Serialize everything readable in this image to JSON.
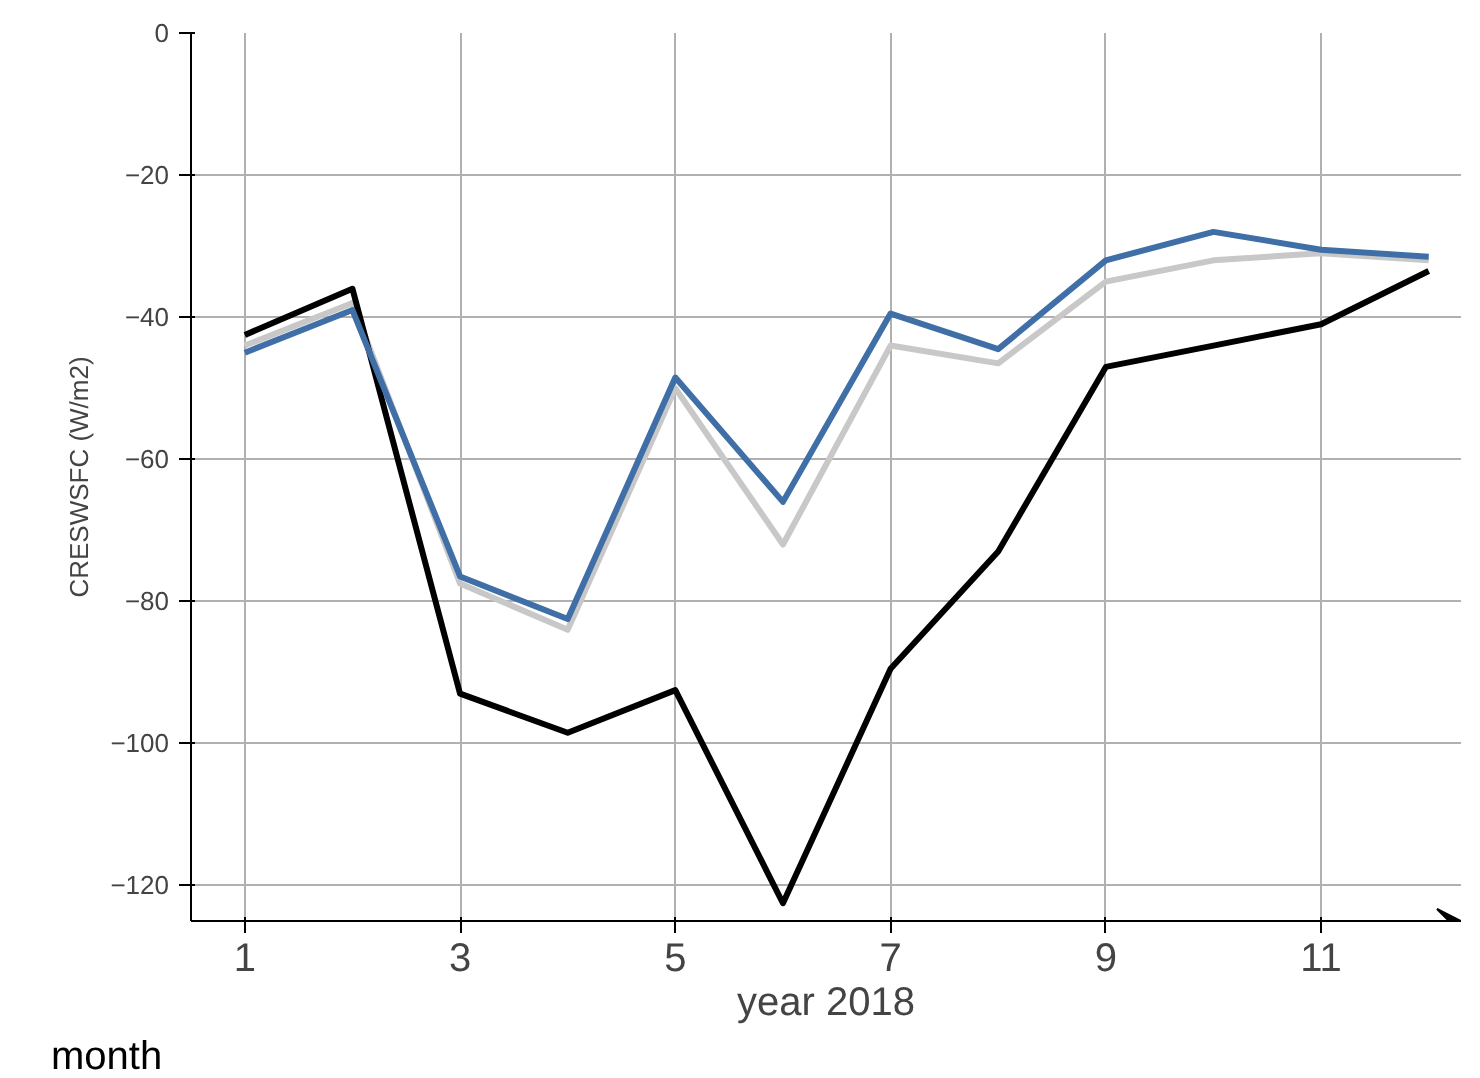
{
  "chart_data": {
    "type": "line",
    "x": [
      1,
      2,
      3,
      4,
      5,
      6,
      7,
      8,
      9,
      10,
      11,
      12
    ],
    "xlabel": "year 2018",
    "ylabel": "CRESWSFC (W/m2)",
    "annotations": [
      "month"
    ],
    "series": [
      {
        "color": "#c8c8c8",
        "values": [
          -44,
          -38,
          -77.5,
          -84,
          -50,
          -72,
          -44,
          -46.5,
          -35,
          -32,
          -31,
          -32
        ]
      },
      {
        "color": "#000000",
        "values": [
          -42.5,
          -36,
          -93,
          -98.5,
          -92.5,
          -122.5,
          -89.5,
          -73,
          -47,
          -44,
          -41,
          -33.5
        ]
      },
      {
        "color": "#3f6fa6",
        "values": [
          -45,
          -39,
          -76.5,
          -82.5,
          -48.5,
          -66,
          -39.5,
          -44.5,
          -32,
          -28,
          -30.5,
          -31.5
        ]
      }
    ],
    "xlim": [
      0.5,
      12.3
    ],
    "ylim": [
      -125,
      0
    ],
    "xticks": [
      1,
      3,
      5,
      7,
      9,
      11
    ],
    "yticks": [
      {
        "value": -120,
        "label": "−120"
      },
      {
        "value": -100,
        "label": "−100"
      },
      {
        "value": -80,
        "label": "−80"
      },
      {
        "value": -60,
        "label": "−60"
      },
      {
        "value": -40,
        "label": "−40"
      },
      {
        "value": -20,
        "label": "−20"
      },
      0
    ],
    "grid": true,
    "marker": "none",
    "line_style": "solid"
  }
}
